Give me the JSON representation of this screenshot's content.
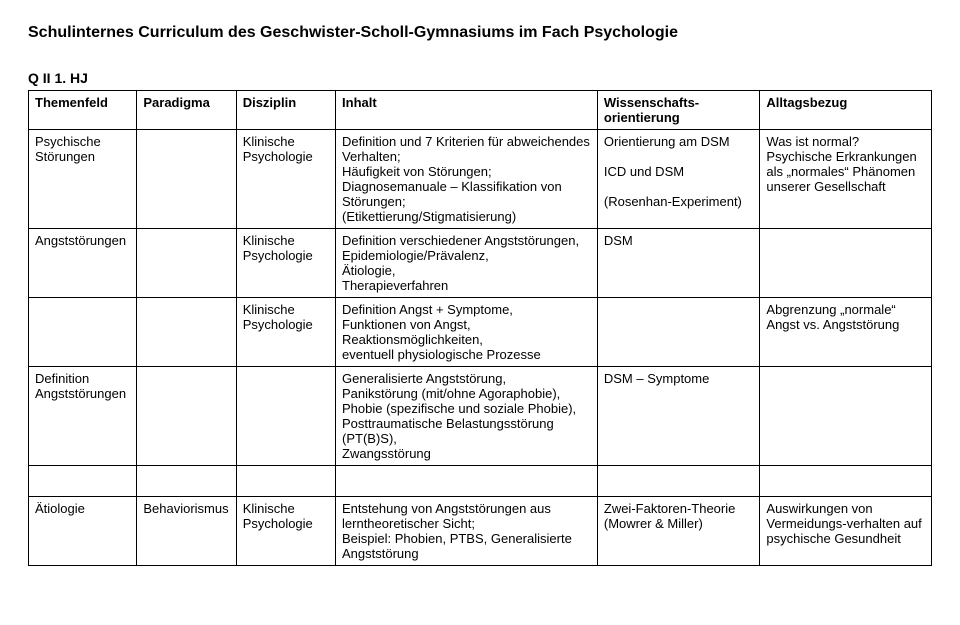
{
  "title": "Schulinternes Curriculum des Geschwister-Scholl-Gymnasiums im Fach Psychologie",
  "section": "Q II 1. HJ",
  "headers": {
    "c1": "Themenfeld",
    "c2": "Paradigma",
    "c3": "Disziplin",
    "c4": "Inhalt",
    "c5": "Wissenschafts-orientierung",
    "c6": "Alltagsbezug"
  },
  "rows": [
    {
      "c1": "Psychische Störungen",
      "c2": "",
      "c3": "Klinische Psychologie",
      "c4": "Definition und 7 Kriterien für abweichendes Verhalten;\nHäufigkeit von Störungen;\nDiagnosemanuale – Klassifikation von Störungen;\n(Etikettierung/Stigmatisierung)",
      "c5": "Orientierung am DSM\n\nICD und DSM\n\n(Rosenhan-Experiment)",
      "c6": "Was ist normal?\nPsychische Erkrankungen als „normales“ Phänomen unserer Gesellschaft"
    },
    {
      "c1": "Angststörungen",
      "c2": "",
      "c3": "Klinische Psychologie",
      "c4": "Definition verschiedener Angststörungen,\nEpidemiologie/Prävalenz,\nÄtiologie,\nTherapieverfahren",
      "c5": "DSM",
      "c6": ""
    },
    {
      "c1": "",
      "c2": "",
      "c3": "Klinische Psychologie",
      "c4": "Definition Angst + Symptome,\nFunktionen von  Angst,\nReaktionsmöglichkeiten,\neventuell physiologische Prozesse",
      "c5": "",
      "c6": "Abgrenzung „normale“ Angst vs. Angststörung"
    },
    {
      "c1": "Definition Angststörungen",
      "c2": "",
      "c3": "",
      "c4": "Generalisierte Angststörung,\nPanikstörung (mit/ohne Agoraphobie),\nPhobie (spezifische und soziale Phobie),\nPosttraumatische Belastungsstörung (PT(B)S),\nZwangsstörung",
      "c5": "DSM – Symptome",
      "c6": ""
    },
    {
      "spacer": true
    },
    {
      "c1": "Ätiologie",
      "c2": "Behaviorismus",
      "c3": "Klinische Psychologie",
      "c4": "Entstehung von Angststörungen aus lerntheoretischer Sicht;\nBeispiel: Phobien, PTBS, Generalisierte Angststörung",
      "c5": "Zwei-Faktoren-Theorie (Mowrer & Miller)",
      "c6": "Auswirkungen von Vermeidungs-verhalten auf psychische Gesundheit"
    }
  ]
}
